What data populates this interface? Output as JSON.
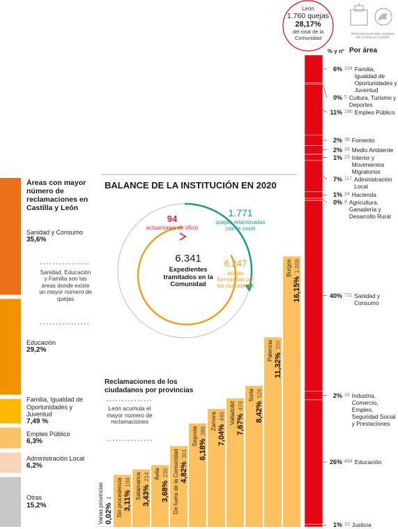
{
  "logo": {
    "lines": [
      "PROCURADOR DEL COMÚN",
      "DE CASTILLA Y LEÓN"
    ]
  },
  "areas": {
    "title": "Áreas con mayor número de reclamaciones en Castilla y León",
    "note": "Sanidad, Educación y Familia son las áreas donde existe un mayor número de quejas",
    "items": [
      {
        "name": "Sanidad y Consumo",
        "value": 35.6,
        "value_label": "35,6%",
        "color": "#ec7019"
      },
      {
        "name": "Educación",
        "value": 29.2,
        "value_label": "29,2%",
        "color": "#f39200"
      },
      {
        "name": "Familia, Igualdad de Oportunidades y Juventud",
        "value": 7.49,
        "value_label": "7,49 %",
        "color": "#fbb900"
      },
      {
        "name": "Empleo Público",
        "value": 6.3,
        "value_label": "6,3%",
        "color": "#fbc165"
      },
      {
        "name": "Administración Local",
        "value": 6.2,
        "value_label": "6,2%",
        "color": "#f9d4b8"
      },
      {
        "name": "Otras",
        "value": 15.2,
        "value_label": "15,2%",
        "color": "#c8c8c8"
      }
    ]
  },
  "balance": {
    "title": "BALANCE DE LA INSTITUCIÓN EN 2020",
    "total": {
      "value": 6341,
      "value_label": "6.341",
      "text": "Expedientes tramitados en la Comunidad"
    },
    "oficio": {
      "value": 94,
      "text": "actuaciones de oficio"
    },
    "covid": {
      "value": 1771,
      "value_label": "1.771",
      "text": "quejas relacionadas con la covid"
    },
    "ciudadanos": {
      "value": 6247,
      "value_label": "6.247",
      "text": "quejas formuladas por los ciudadanos"
    }
  },
  "chart_data": {
    "type": "bar",
    "title": "Reclamaciones de los ciudadanos por provincias",
    "note": "León acumula el mayor número de reclamaciones",
    "color": "#fbc15e",
    "categories": [
      "Varias provincias",
      "Sin procedencia",
      "Salamanca",
      "Ávila",
      "De fuera de la Comunidad",
      "Segovia",
      "Zamora",
      "Valladolid",
      "Soria",
      "Palencia",
      "Burgos"
    ],
    "values": [
      0.02,
      3.11,
      3.43,
      3.68,
      4.82,
      6.18,
      7.04,
      7.67,
      8.42,
      11.32,
      16.15
    ],
    "value_labels": [
      "0,02%",
      "3,11%",
      "3,43%",
      "3,68%",
      "4,82%",
      "6,18%",
      "7,04%",
      "7,67%",
      "8,42%",
      "11,32%",
      "16,15%"
    ],
    "counts": [
      1,
      194,
      214,
      230,
      301,
      386,
      440,
      479,
      526,
      707,
      {
        "value": 1009,
        "label": "1.009"
      }
    ]
  },
  "leon": {
    "name": "León",
    "value": 28.17,
    "value_label": "28,17%",
    "count": {
      "value": 1760,
      "label": "1.760 quejas"
    },
    "caption": "del total de la Comunidad",
    "color": "#e30613",
    "header_pct": "% y nº",
    "header_area": "Por área",
    "areas": [
      {
        "name": "Familia, Igualdad de Oportunidades y Juventud",
        "value": 6,
        "value_label": "6%",
        "count": 104
      },
      {
        "name": "Cultura, Turismo y Deportes",
        "value": 0,
        "value_label": "0%",
        "count": 5
      },
      {
        "name": "Empleo Público",
        "value": 11,
        "value_label": "11%",
        "count": 190
      },
      {
        "name": "Fomento",
        "value": 2,
        "value_label": "2%",
        "count": 38
      },
      {
        "name": "Medio Ambiente",
        "value": 2,
        "value_label": "2%",
        "count": 33
      },
      {
        "name": "Interior y Movimientos Migratorios",
        "value": 1,
        "value_label": "1%",
        "count": 23
      },
      {
        "name": "Administración Local",
        "value": 7,
        "value_label": "7%",
        "count": 117
      },
      {
        "name": "Hacienda",
        "value": 1,
        "value_label": "1%",
        "count": 24
      },
      {
        "name": "Agricultura, Ganadería y Desarrollo Rural",
        "value": 0,
        "value_label": "0%",
        "count": 8
      },
      {
        "name": "Sanidad y Consumo",
        "value": 40,
        "value_label": "40%",
        "count": 711
      },
      {
        "name": "Industria, Comercio, Empleo, Seguridad Social y Prestaciones",
        "value": 2,
        "value_label": "2%",
        "count": 33
      },
      {
        "name": "Educación",
        "value": 26,
        "value_label": "26%",
        "count": 464
      },
      {
        "name": "Justicia",
        "value": 1,
        "value_label": "1%",
        "count": 10
      }
    ]
  }
}
